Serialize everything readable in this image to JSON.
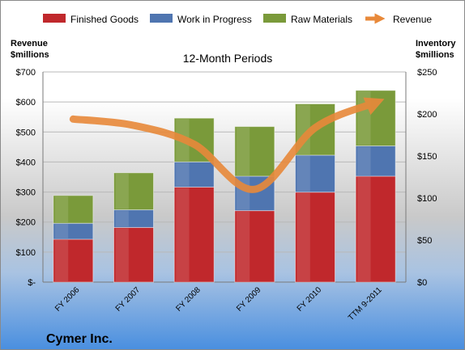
{
  "chart_data": {
    "type": "bar",
    "subtitle": "12-Month Periods",
    "company": "Cymer Inc.",
    "categories": [
      "FY 2006",
      "FY 2007",
      "FY 2008",
      "FY 2009",
      "FY 2010",
      "TTM 9-2011"
    ],
    "stacked": true,
    "y_left": {
      "label_line1": "Revenue",
      "label_line2": "$millions",
      "range": [
        0,
        700
      ],
      "ticks": [
        0,
        100,
        200,
        300,
        400,
        500,
        600,
        700
      ],
      "tick_labels": [
        "$-",
        "$100",
        "$200",
        "$300",
        "$400",
        "$500",
        "$600",
        "$700"
      ]
    },
    "y_right": {
      "label_line1": "Inventory",
      "label_line2": "$millions",
      "range": [
        0,
        250
      ],
      "ticks": [
        0,
        50,
        100,
        150,
        200,
        250
      ],
      "tick_labels": [
        "$0",
        "$50",
        "$100",
        "$150",
        "$200",
        "$250"
      ]
    },
    "series": [
      {
        "name": "Finished Goods",
        "axis": "right",
        "color": "#c0282c",
        "values": [
          51,
          65,
          113,
          85,
          107,
          126
        ]
      },
      {
        "name": "Work in Progress",
        "axis": "right",
        "color": "#4f75b0",
        "values": [
          19,
          21,
          30,
          41,
          44,
          36
        ]
      },
      {
        "name": "Raw Materials",
        "axis": "right",
        "color": "#7a9a3a",
        "values": [
          33,
          44,
          52,
          59,
          61,
          66
        ]
      },
      {
        "name": "Revenue",
        "type": "line",
        "axis": "left",
        "color": "#e8893a",
        "values": [
          543,
          522,
          459,
          309,
          514,
          598
        ]
      }
    ],
    "grid": true,
    "legend_position": "top"
  }
}
